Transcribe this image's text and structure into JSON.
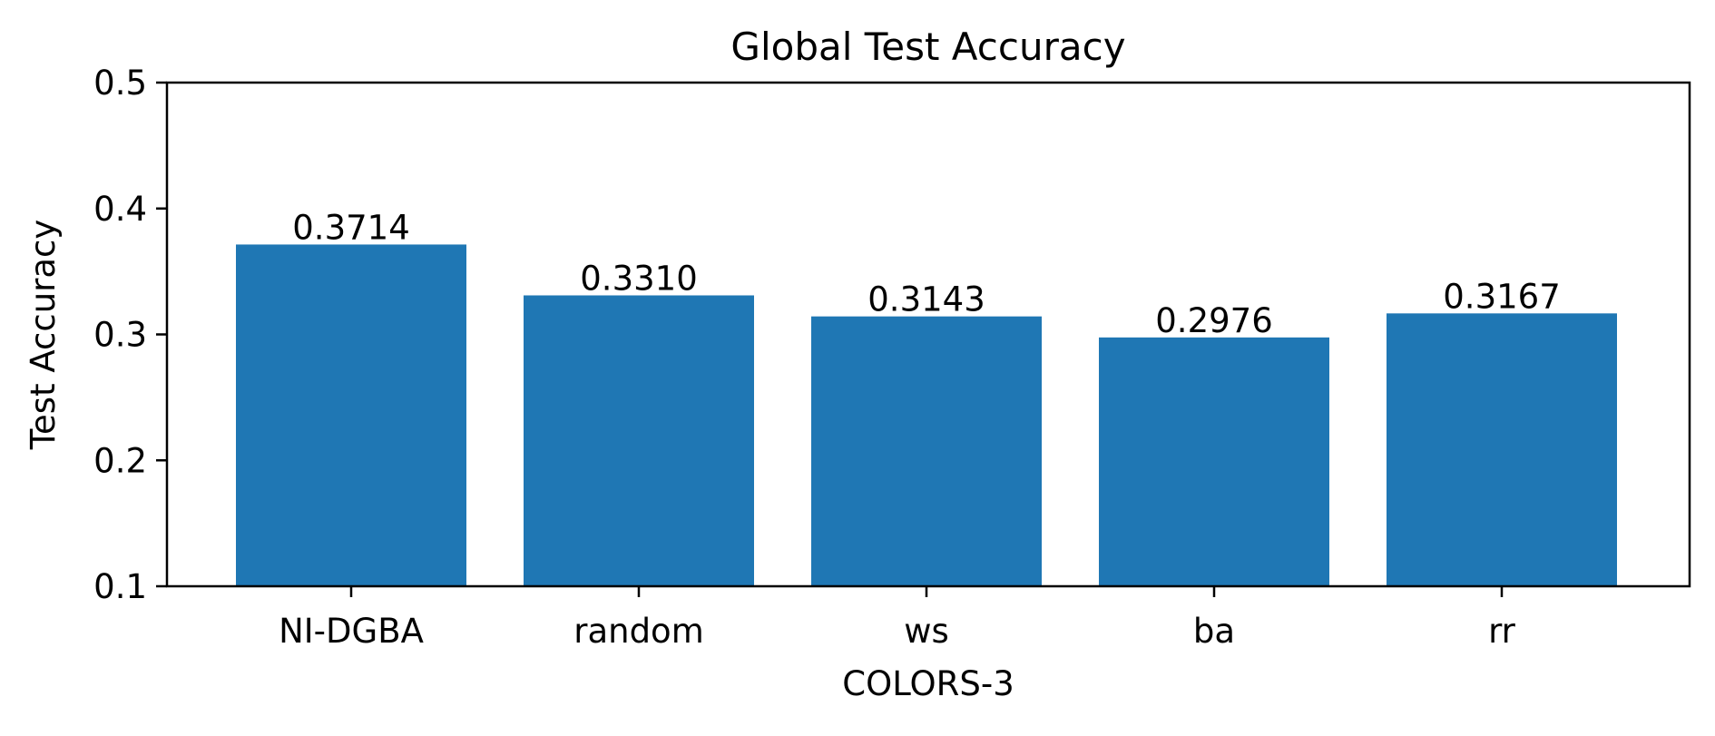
{
  "chart_data": {
    "type": "bar",
    "title": "Global Test Accuracy",
    "xlabel": "COLORS-3",
    "ylabel": "Test Accuracy",
    "categories": [
      "NI-DGBA",
      "random",
      "ws",
      "ba",
      "rr"
    ],
    "values": [
      0.3714,
      0.331,
      0.3143,
      0.2976,
      0.3167
    ],
    "value_labels": [
      "0.3714",
      "0.3310",
      "0.3143",
      "0.2976",
      "0.3167"
    ],
    "ylim": [
      0.1,
      0.5
    ],
    "yticks": [
      0.1,
      0.2,
      0.3,
      0.4,
      0.5
    ],
    "ytick_labels": [
      "0.1",
      "0.2",
      "0.3",
      "0.4",
      "0.5"
    ],
    "grid": false,
    "bar_color": "#1f77b4"
  }
}
